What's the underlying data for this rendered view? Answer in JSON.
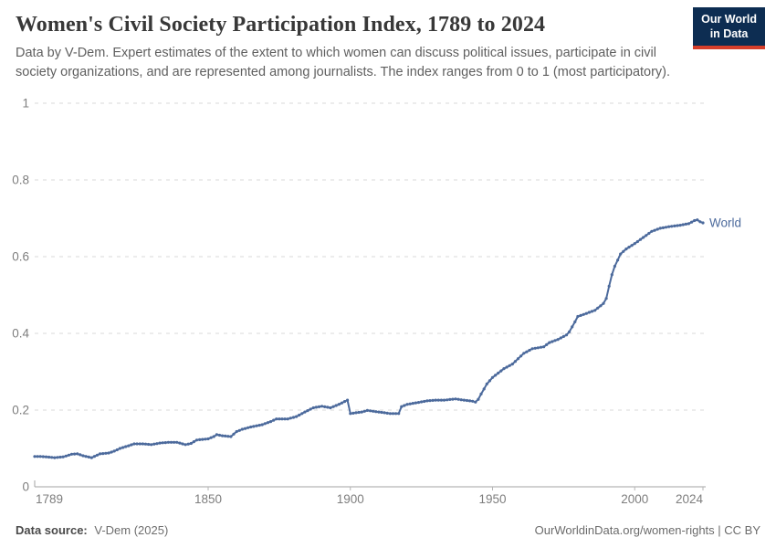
{
  "header": {
    "title": "Women's Civil Society Participation Index, 1789 to 2024",
    "subtitle": "Data by V-Dem. Expert estimates of the extent to which women can discuss political issues, participate in civil society organizations, and are represented among journalists. The index ranges from 0 to 1 (most participatory).",
    "logo": {
      "line1": "Our World",
      "line2": "in Data",
      "bg_color": "#0d2d52",
      "bar_color": "#d63e2a"
    }
  },
  "chart_data": {
    "type": "line",
    "title": "Women's Civil Society Participation Index, 1789 to 2024",
    "xlabel": "",
    "ylabel": "",
    "x_range": [
      1789,
      2024
    ],
    "y_range": [
      0,
      1
    ],
    "x_ticks": [
      1789,
      1850,
      1900,
      1950,
      2000,
      2024
    ],
    "y_ticks": [
      0,
      0.2,
      0.4,
      0.6,
      0.8,
      1
    ],
    "grid": "dashed-horizontal",
    "grid_color": "#d9d9d9",
    "axis_color": "#a3a3a3",
    "tick_label_color": "#7e7e7e",
    "series": [
      {
        "name": "World",
        "color": "#4c6a9c",
        "points": [
          [
            1789,
            0.079
          ],
          [
            1791,
            0.079
          ],
          [
            1793,
            0.078
          ],
          [
            1796,
            0.076
          ],
          [
            1799,
            0.078
          ],
          [
            1802,
            0.085
          ],
          [
            1804,
            0.086
          ],
          [
            1806,
            0.081
          ],
          [
            1809,
            0.076
          ],
          [
            1812,
            0.086
          ],
          [
            1815,
            0.088
          ],
          [
            1817,
            0.093
          ],
          [
            1819,
            0.1
          ],
          [
            1822,
            0.107
          ],
          [
            1824,
            0.112
          ],
          [
            1827,
            0.112
          ],
          [
            1830,
            0.11
          ],
          [
            1833,
            0.114
          ],
          [
            1836,
            0.116
          ],
          [
            1839,
            0.116
          ],
          [
            1842,
            0.11
          ],
          [
            1844,
            0.113
          ],
          [
            1846,
            0.122
          ],
          [
            1850,
            0.125
          ],
          [
            1852,
            0.131
          ],
          [
            1853,
            0.136
          ],
          [
            1855,
            0.133
          ],
          [
            1858,
            0.131
          ],
          [
            1860,
            0.144
          ],
          [
            1862,
            0.15
          ],
          [
            1865,
            0.156
          ],
          [
            1869,
            0.162
          ],
          [
            1872,
            0.17
          ],
          [
            1874,
            0.177
          ],
          [
            1878,
            0.177
          ],
          [
            1881,
            0.183
          ],
          [
            1884,
            0.195
          ],
          [
            1887,
            0.206
          ],
          [
            1890,
            0.21
          ],
          [
            1893,
            0.206
          ],
          [
            1896,
            0.215
          ],
          [
            1899,
            0.226
          ],
          [
            1900,
            0.191
          ],
          [
            1904,
            0.195
          ],
          [
            1906,
            0.199
          ],
          [
            1911,
            0.194
          ],
          [
            1914,
            0.191
          ],
          [
            1917,
            0.191
          ],
          [
            1918,
            0.209
          ],
          [
            1920,
            0.215
          ],
          [
            1924,
            0.22
          ],
          [
            1927,
            0.224
          ],
          [
            1930,
            0.226
          ],
          [
            1933,
            0.226
          ],
          [
            1937,
            0.229
          ],
          [
            1940,
            0.226
          ],
          [
            1943,
            0.223
          ],
          [
            1944,
            0.221
          ],
          [
            1945,
            0.228
          ],
          [
            1946,
            0.242
          ],
          [
            1948,
            0.268
          ],
          [
            1950,
            0.285
          ],
          [
            1954,
            0.308
          ],
          [
            1957,
            0.32
          ],
          [
            1961,
            0.348
          ],
          [
            1964,
            0.36
          ],
          [
            1968,
            0.365
          ],
          [
            1970,
            0.376
          ],
          [
            1973,
            0.384
          ],
          [
            1976,
            0.396
          ],
          [
            1977,
            0.404
          ],
          [
            1979,
            0.43
          ],
          [
            1980,
            0.444
          ],
          [
            1983,
            0.452
          ],
          [
            1986,
            0.46
          ],
          [
            1989,
            0.478
          ],
          [
            1990,
            0.491
          ],
          [
            1991,
            0.523
          ],
          [
            1992,
            0.553
          ],
          [
            1993,
            0.575
          ],
          [
            1995,
            0.607
          ],
          [
            1997,
            0.62
          ],
          [
            2000,
            0.634
          ],
          [
            2003,
            0.65
          ],
          [
            2006,
            0.666
          ],
          [
            2009,
            0.674
          ],
          [
            2012,
            0.678
          ],
          [
            2016,
            0.682
          ],
          [
            2019,
            0.686
          ],
          [
            2021,
            0.694
          ],
          [
            2022,
            0.696
          ],
          [
            2023,
            0.691
          ],
          [
            2024,
            0.688
          ]
        ]
      }
    ]
  },
  "footer": {
    "source_label": "Data source:",
    "source_value": "V-Dem (2025)",
    "link_text": "OurWorldinData.org/women-rights | CC BY"
  }
}
